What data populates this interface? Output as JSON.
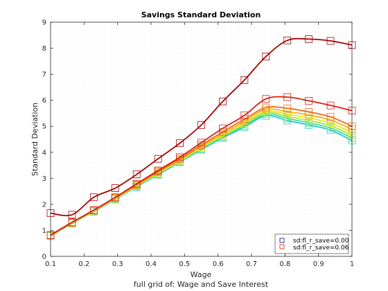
{
  "chart_data": {
    "type": "line",
    "title": "Savings Standard Deviation",
    "xlabel": "Wage",
    "ylabel": "Standard Deviation",
    "subtitle": "full grid of: Wage and Save Interest",
    "xlim": [
      0.1,
      1.0
    ],
    "ylim": [
      0,
      9
    ],
    "xticks": [
      "0.1",
      "0.2",
      "0.3",
      "0.4",
      "0.5",
      "0.6",
      "0.7",
      "0.8",
      "0.9",
      "1"
    ],
    "yticks": [
      "0",
      "1",
      "2",
      "3",
      "4",
      "5",
      "6",
      "7",
      "8",
      "9"
    ],
    "grid": true,
    "x": [
      0.1,
      0.164,
      0.229,
      0.293,
      0.357,
      0.421,
      0.486,
      0.55,
      0.614,
      0.679,
      0.743,
      0.807,
      0.871,
      0.936,
      1.0
    ],
    "series": [
      {
        "color": "#1fc8d8",
        "values": [
          0.78,
          1.26,
          1.72,
          2.19,
          2.67,
          3.14,
          3.62,
          4.1,
          4.55,
          4.97,
          5.4,
          5.22,
          5.05,
          4.85,
          4.45
        ]
      },
      {
        "color": "#4dd890",
        "values": [
          0.79,
          1.27,
          1.73,
          2.2,
          2.69,
          3.16,
          3.64,
          4.13,
          4.59,
          5.02,
          5.46,
          5.3,
          5.13,
          4.93,
          4.55
        ]
      },
      {
        "color": "#9ee84a",
        "values": [
          0.79,
          1.27,
          1.74,
          2.21,
          2.7,
          3.18,
          3.66,
          4.16,
          4.62,
          5.07,
          5.52,
          5.38,
          5.22,
          5.02,
          4.65
        ]
      },
      {
        "color": "#e8e820",
        "values": [
          0.8,
          1.28,
          1.75,
          2.22,
          2.72,
          3.2,
          3.68,
          4.19,
          4.66,
          5.12,
          5.58,
          5.46,
          5.32,
          5.12,
          4.76
        ]
      },
      {
        "color": "#f4b020",
        "values": [
          0.8,
          1.29,
          1.76,
          2.24,
          2.74,
          3.23,
          3.71,
          4.23,
          4.71,
          5.19,
          5.65,
          5.56,
          5.43,
          5.24,
          4.88
        ]
      },
      {
        "color": "#ee6a1a",
        "values": [
          0.81,
          1.3,
          1.77,
          2.25,
          2.76,
          3.26,
          3.75,
          4.28,
          4.78,
          5.27,
          5.72,
          5.69,
          5.55,
          5.36,
          5.0
        ]
      },
      {
        "color": "#d91f10",
        "values": [
          0.82,
          1.31,
          1.78,
          2.27,
          2.79,
          3.3,
          3.81,
          4.37,
          4.92,
          5.42,
          6.05,
          6.12,
          5.98,
          5.8,
          5.6
        ]
      },
      {
        "color": "#a80000",
        "values": [
          1.66,
          1.6,
          2.27,
          2.62,
          3.15,
          3.75,
          4.35,
          5.05,
          5.95,
          6.78,
          7.68,
          8.3,
          8.35,
          8.28,
          8.12
        ]
      }
    ],
    "legend": {
      "position": "bottom-right",
      "entries": [
        {
          "label": "sd:fl_r_save=0.00",
          "color": "#00008b"
        },
        {
          "label": "sd:fl_r_save=0.06",
          "color": "#d91f10"
        }
      ]
    }
  }
}
